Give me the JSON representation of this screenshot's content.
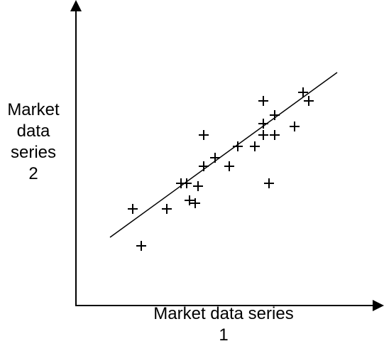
{
  "chart_data": {
    "type": "scatter",
    "title": "",
    "xlabel": [
      "Market data series",
      "1"
    ],
    "ylabel": [
      "Market",
      "data",
      "series",
      "2"
    ],
    "xlim": [
      0,
      100
    ],
    "ylim": [
      0,
      100
    ],
    "grid": false,
    "legend": "none",
    "marker": "+",
    "colors": {
      "axis": "#000000",
      "marker": "#000000",
      "trend": "#000000"
    },
    "points": [
      {
        "x": 20,
        "y": 34
      },
      {
        "x": 23,
        "y": 21
      },
      {
        "x": 32,
        "y": 34
      },
      {
        "x": 37,
        "y": 43
      },
      {
        "x": 39,
        "y": 43
      },
      {
        "x": 40,
        "y": 37
      },
      {
        "x": 42,
        "y": 36
      },
      {
        "x": 43,
        "y": 42
      },
      {
        "x": 45,
        "y": 60
      },
      {
        "x": 45,
        "y": 49
      },
      {
        "x": 49,
        "y": 52
      },
      {
        "x": 54,
        "y": 49
      },
      {
        "x": 57,
        "y": 56
      },
      {
        "x": 63,
        "y": 56
      },
      {
        "x": 66,
        "y": 72
      },
      {
        "x": 66,
        "y": 64
      },
      {
        "x": 66,
        "y": 60
      },
      {
        "x": 68,
        "y": 43
      },
      {
        "x": 70,
        "y": 60
      },
      {
        "x": 70,
        "y": 67
      },
      {
        "x": 77,
        "y": 63
      },
      {
        "x": 80,
        "y": 75
      },
      {
        "x": 82,
        "y": 72
      }
    ],
    "trend_line": {
      "x": [
        12,
        92
      ],
      "y": [
        24,
        82
      ]
    }
  }
}
